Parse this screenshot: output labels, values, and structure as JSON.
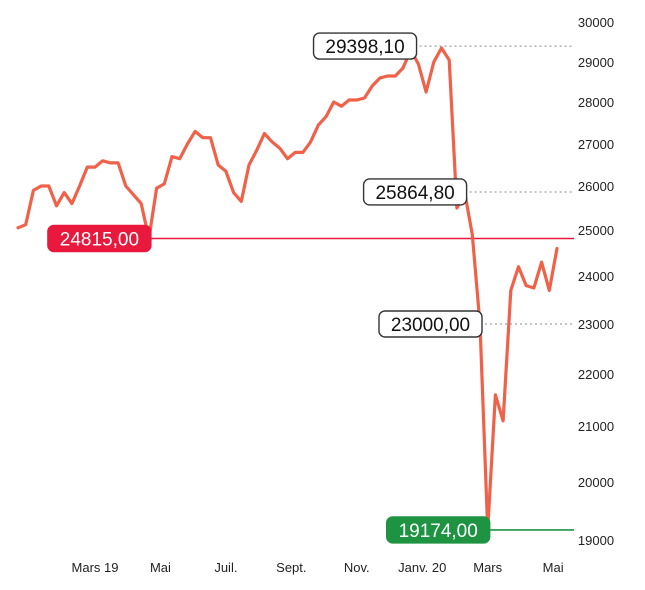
{
  "chart_data": {
    "type": "line",
    "title": "",
    "xlabel": "",
    "ylabel": "",
    "ylim": [
      19000,
      30000
    ],
    "y_ticks": [
      "30000",
      "29000",
      "28000",
      "27000",
      "26000",
      "25000",
      "24000",
      "23000",
      "22000",
      "21000",
      "20000",
      "19000"
    ],
    "x_ticks": [
      {
        "label": "Mars 19",
        "x": 10
      },
      {
        "label": "Mai",
        "x": 18.5
      },
      {
        "label": "Juil.",
        "x": 27
      },
      {
        "label": "Sept.",
        "x": 35.5
      },
      {
        "label": "Nov.",
        "x": 44
      },
      {
        "label": "Janv. 20",
        "x": 52.5
      },
      {
        "label": "Mars",
        "x": 61
      },
      {
        "label": "Mai",
        "x": 69.5
      }
    ],
    "series": [
      {
        "color": "#ef6148",
        "points": [
          [
            0,
            25050
          ],
          [
            1,
            25120
          ],
          [
            2,
            25900
          ],
          [
            3,
            26000
          ],
          [
            4,
            26000
          ],
          [
            5,
            25550
          ],
          [
            6,
            25850
          ],
          [
            7,
            25600
          ],
          [
            8,
            26000
          ],
          [
            9,
            26450
          ],
          [
            10,
            26450
          ],
          [
            11,
            26600
          ],
          [
            12,
            26550
          ],
          [
            13,
            26550
          ],
          [
            14,
            26000
          ],
          [
            15,
            25800
          ],
          [
            16,
            25600
          ],
          [
            17,
            24815
          ],
          [
            18,
            25950
          ],
          [
            19,
            26050
          ],
          [
            20,
            26700
          ],
          [
            21,
            26650
          ],
          [
            22,
            27000
          ],
          [
            23,
            27300
          ],
          [
            24,
            27150
          ],
          [
            25,
            27150
          ],
          [
            26,
            26500
          ],
          [
            27,
            26350
          ],
          [
            28,
            25850
          ],
          [
            29,
            25650
          ],
          [
            30,
            26500
          ],
          [
            31,
            26850
          ],
          [
            32,
            27250
          ],
          [
            33,
            27050
          ],
          [
            34,
            26900
          ],
          [
            35,
            26650
          ],
          [
            36,
            26800
          ],
          [
            37,
            26800
          ],
          [
            38,
            27050
          ],
          [
            39,
            27450
          ],
          [
            40,
            27650
          ],
          [
            41,
            28000
          ],
          [
            42,
            27900
          ],
          [
            43,
            28050
          ],
          [
            44,
            28050
          ],
          [
            45,
            28100
          ],
          [
            46,
            28400
          ],
          [
            47,
            28600
          ],
          [
            48,
            28650
          ],
          [
            49,
            28650
          ],
          [
            50,
            28850
          ],
          [
            51,
            29300
          ],
          [
            52,
            28950
          ],
          [
            53,
            28250
          ],
          [
            54,
            29000
          ],
          [
            55,
            29350
          ],
          [
            56,
            29050
          ],
          [
            57,
            25500
          ],
          [
            58,
            25864.8
          ],
          [
            59,
            24900
          ],
          [
            60,
            23000
          ],
          [
            61,
            19174
          ],
          [
            62,
            21600
          ],
          [
            63,
            21100
          ],
          [
            64,
            23700
          ],
          [
            65,
            24200
          ],
          [
            66,
            23800
          ],
          [
            67,
            23750
          ],
          [
            68,
            24300
          ],
          [
            69,
            23700
          ],
          [
            70,
            24600
          ]
        ]
      }
    ],
    "reference_lines": [
      {
        "label": "29398,10",
        "value": 29398.1,
        "style": "dotted",
        "x_anchor": 51.5,
        "color": "#888888",
        "label_bg": "#ffffff",
        "label_fg": "#111111",
        "label_border": "#333333"
      },
      {
        "label": "25864,80",
        "value": 25864.8,
        "style": "dotted",
        "x_anchor": 58,
        "color": "#888888",
        "label_bg": "#ffffff",
        "label_fg": "#111111",
        "label_border": "#333333"
      },
      {
        "label": "24815,00",
        "value": 24815,
        "style": "solid",
        "x_anchor": 17,
        "color": "#e8193c",
        "label_bg": "#e8193c",
        "label_fg": "#ffffff",
        "label_border": "#e8193c"
      },
      {
        "label": "23000,00",
        "value": 23000,
        "style": "dotted",
        "x_anchor": 60,
        "color": "#888888",
        "label_bg": "#ffffff",
        "label_fg": "#111111",
        "label_border": "#333333"
      },
      {
        "label": "19174,00",
        "value": 19174,
        "style": "solid",
        "x_anchor": 61,
        "color": "#1e9442",
        "label_bg": "#1e9442",
        "label_fg": "#ffffff",
        "label_border": "#1e9442"
      }
    ]
  }
}
